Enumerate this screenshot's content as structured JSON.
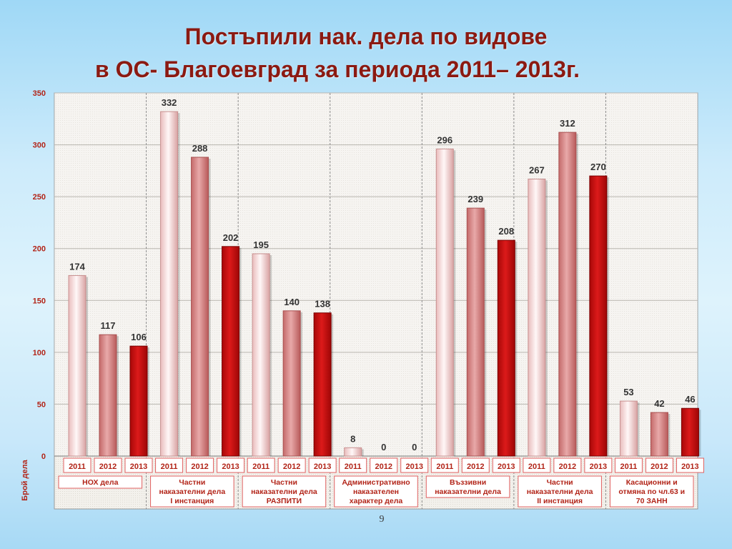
{
  "title": {
    "line1": "Постъпили нак. дела по видове",
    "line2": "в ОС- Благоевград за периода 2011– 2013г."
  },
  "page_number": "9",
  "colors": {
    "title": "#8b1a12",
    "axis_text": "#b22418",
    "bar_2011": "#f9e6e6",
    "bar_2012": "#d98888",
    "bar_2013": "#c81010"
  },
  "chart_data": {
    "type": "bar",
    "ylabel": "Брой дела",
    "ylim": [
      0,
      350
    ],
    "yticks": [
      0,
      50,
      100,
      150,
      200,
      250,
      300,
      350
    ],
    "grid": true,
    "legend": "none",
    "years": [
      "2011",
      "2012",
      "2013"
    ],
    "groups": [
      {
        "label": [
          "НОХ дела"
        ],
        "values": [
          174,
          117,
          106
        ]
      },
      {
        "label": [
          "Частни",
          "наказателни дела",
          "I инстанция"
        ],
        "values": [
          332,
          288,
          202
        ]
      },
      {
        "label": [
          "Частни",
          "наказателни дела",
          "РАЗПИТИ"
        ],
        "values": [
          195,
          140,
          138
        ]
      },
      {
        "label": [
          "Административно",
          "наказателен",
          "характер дела"
        ],
        "values": [
          8,
          0,
          0
        ]
      },
      {
        "label": [
          "Въззивни",
          "наказателни дела"
        ],
        "values": [
          296,
          239,
          208
        ]
      },
      {
        "label": [
          "Частни",
          "наказателни дела",
          "II инстанция"
        ],
        "values": [
          267,
          312,
          270
        ]
      },
      {
        "label": [
          "Касационни и",
          "отмяна по чл.63 и",
          "70 ЗАНН"
        ],
        "values": [
          53,
          42,
          46
        ]
      }
    ]
  }
}
